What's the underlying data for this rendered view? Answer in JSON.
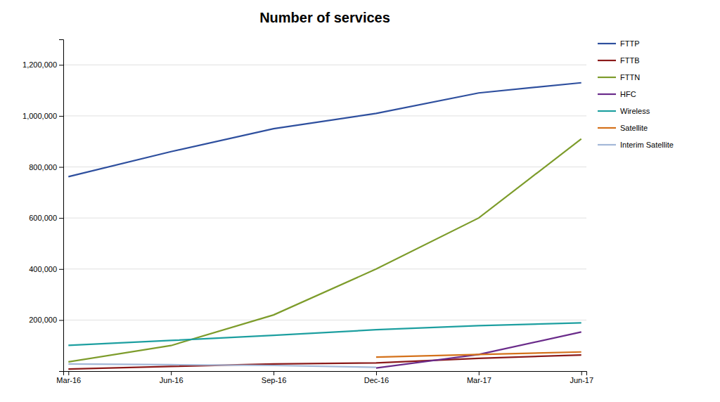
{
  "chart_data": {
    "type": "line",
    "title": "Number of services",
    "categories": [
      "Mar-16",
      "Jun-16",
      "Sep-16",
      "Dec-16",
      "Mar-17",
      "Jun-17"
    ],
    "series": [
      {
        "name": "FTTP",
        "color": "#2e4f9e",
        "values": [
          762000,
          860000,
          950000,
          1010000,
          1090000,
          1130000
        ]
      },
      {
        "name": "FTTB",
        "color": "#8b1a1a",
        "values": [
          8000,
          18000,
          28000,
          32000,
          50000,
          63000
        ]
      },
      {
        "name": "FTTN",
        "color": "#7d9c2b",
        "values": [
          36000,
          100000,
          220000,
          400000,
          600000,
          910000
        ]
      },
      {
        "name": "HFC",
        "color": "#6a2b8a",
        "values": [
          null,
          null,
          null,
          12000,
          65000,
          153000
        ]
      },
      {
        "name": "Wireless",
        "color": "#1d9fa0",
        "values": [
          101000,
          120000,
          140000,
          162000,
          178000,
          189000
        ]
      },
      {
        "name": "Satellite",
        "color": "#d4711a",
        "values": [
          null,
          null,
          null,
          55000,
          65000,
          75000
        ]
      },
      {
        "name": "Interim Satellite",
        "color": "#a3b8d8",
        "values": [
          28000,
          25000,
          22000,
          15000,
          null,
          null
        ]
      }
    ],
    "ylim": [
      0,
      1300000
    ],
    "yticks": [
      {
        "value": 200000,
        "label": "200,000"
      },
      {
        "value": 400000,
        "label": "400,000"
      },
      {
        "value": 600000,
        "label": "600,000"
      },
      {
        "value": 800000,
        "label": "800,000"
      },
      {
        "value": 1000000,
        "label": "1,000,000"
      },
      {
        "value": 1200000,
        "label": "1,200,000"
      }
    ],
    "grid": true,
    "legend": "right"
  }
}
